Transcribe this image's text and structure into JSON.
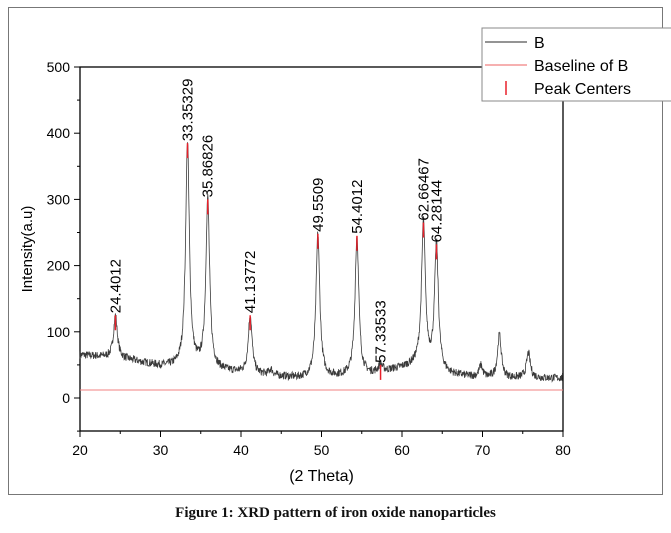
{
  "chart_data": {
    "type": "line",
    "title": "",
    "xlabel": "(2 Theta)",
    "ylabel": "Intensity(a.u)",
    "xlim": [
      20,
      80
    ],
    "ylim": [
      -50,
      500
    ],
    "xticks": [
      20,
      30,
      40,
      50,
      60,
      70,
      80
    ],
    "yticks": [
      0,
      100,
      200,
      300,
      400,
      500
    ],
    "grid": false,
    "legend": {
      "placement": "top-right",
      "entries": [
        {
          "label": "B",
          "color": "#555555",
          "kind": "line"
        },
        {
          "label": "Baseline of B",
          "color": "#f08080",
          "kind": "line"
        },
        {
          "label": "Peak Centers",
          "color": "#e8202a",
          "kind": "tick"
        }
      ]
    },
    "baseline_value": 12,
    "background": [
      [
        20,
        65
      ],
      [
        25,
        60
      ],
      [
        30,
        48
      ],
      [
        34,
        45
      ],
      [
        38,
        40
      ],
      [
        42,
        35
      ],
      [
        47,
        30
      ],
      [
        52,
        32
      ],
      [
        56,
        35
      ],
      [
        60,
        45
      ],
      [
        62,
        50
      ],
      [
        66,
        35
      ],
      [
        70,
        30
      ],
      [
        75,
        30
      ],
      [
        80,
        30
      ]
    ],
    "peaks": [
      {
        "x": 24.4012,
        "height": 125,
        "label": "24.4012",
        "labeled": true
      },
      {
        "x": 33.35329,
        "height": 385,
        "label": "33.35329",
        "labeled": true
      },
      {
        "x": 35.86826,
        "height": 300,
        "label": "35.86826",
        "labeled": true
      },
      {
        "x": 41.13772,
        "height": 125,
        "label": "41.13772",
        "labeled": true
      },
      {
        "x": 49.5509,
        "height": 248,
        "label": "49.5509",
        "labeled": true
      },
      {
        "x": 54.4012,
        "height": 245,
        "label": "54.4012",
        "labeled": true
      },
      {
        "x": 57.33533,
        "height": 50,
        "label": "57.33533",
        "labeled": true
      },
      {
        "x": 62.66467,
        "height": 265,
        "label": "62.66467",
        "labeled": true
      },
      {
        "x": 64.28144,
        "height": 232,
        "label": "64.28144",
        "labeled": true
      },
      {
        "x": 69.8,
        "height": 48,
        "label": "",
        "labeled": false
      },
      {
        "x": 72.1,
        "height": 95,
        "label": "",
        "labeled": false
      },
      {
        "x": 75.7,
        "height": 68,
        "label": "",
        "labeled": false
      },
      {
        "x": 43.7,
        "height": 42,
        "label": "",
        "labeled": false
      }
    ],
    "colors": {
      "series": "#3a3a3a",
      "baseline": "#f08080",
      "peak_tick": "#e8202a"
    }
  },
  "caption": "Figure 1: XRD pattern of iron oxide nanoparticles"
}
